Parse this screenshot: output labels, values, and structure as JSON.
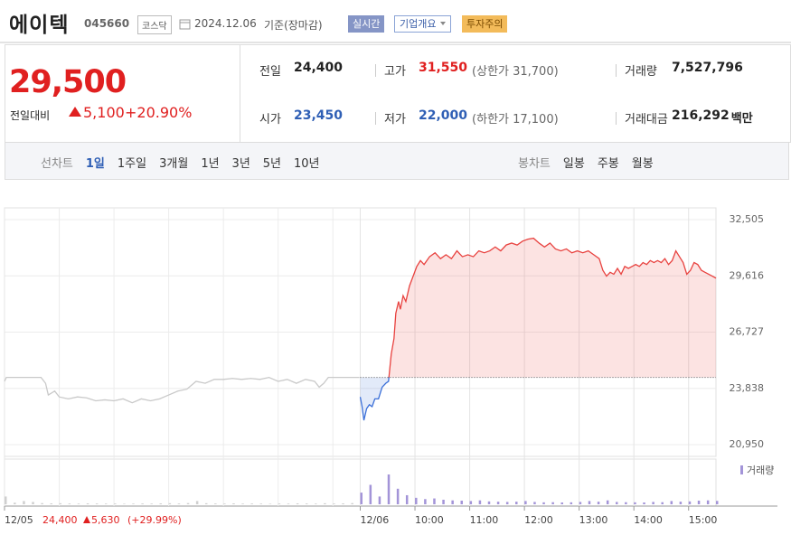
{
  "header": {
    "name": "에이텍",
    "code": "045660",
    "market": "코스닥",
    "date": "2024.12.06",
    "basis": "기준(장마감)",
    "buttons": [
      "실시간",
      "기업개요",
      "투자주의"
    ]
  },
  "price": {
    "current": "29,500",
    "change_label": "전일대비",
    "change": "5,100",
    "rate": "+20.90%"
  },
  "stats": [
    {
      "label": "전일",
      "value": "24,400"
    },
    {
      "label": "고가",
      "value": "31,550",
      "note": "(상한가 31,700)"
    },
    {
      "label": "거래량",
      "value": "7,527,796"
    },
    {
      "label": "시가",
      "value": "23,450"
    },
    {
      "label": "저가",
      "value": "22,000",
      "note": "(하한가 17,100)"
    },
    {
      "label": "거래대금",
      "value": "216,292",
      "unit": "백만"
    }
  ],
  "tabs": {
    "line_label": "선차트",
    "line": [
      "1일",
      "1주일",
      "3개월",
      "1년",
      "3년",
      "5년",
      "10년"
    ],
    "candle_label": "봉차트",
    "candle": [
      "일봉",
      "주봉",
      "월봉"
    ]
  },
  "chart_data": {
    "type": "line",
    "xlim": [
      0,
      780
    ],
    "xticks": [
      {
        "value": 0,
        "label": "12/05"
      },
      {
        "value": 390,
        "label": "12/06"
      },
      {
        "value": 450,
        "label": "10:00"
      },
      {
        "value": 510,
        "label": "11:00"
      },
      {
        "value": 570,
        "label": "12:00"
      },
      {
        "value": 630,
        "label": "13:00"
      },
      {
        "value": 690,
        "label": "14:00"
      },
      {
        "value": 750,
        "label": "15:00"
      }
    ],
    "xgrid": [
      60,
      120,
      180,
      240,
      300,
      360
    ],
    "ylim": [
      20950,
      32505
    ],
    "yticks": [
      {
        "value": 20950,
        "label": "20,950"
      },
      {
        "value": 23838,
        "label": "23,838"
      },
      {
        "value": 26727,
        "label": "26,727"
      },
      {
        "value": 29616,
        "label": "29,616"
      },
      {
        "value": 32505,
        "label": "32,505"
      }
    ],
    "grid": true,
    "reference_line": 24400,
    "series": [
      {
        "color": "#c9c9c9",
        "x": [
          0,
          2,
          10,
          20,
          30,
          40,
          45,
          48,
          55,
          60,
          70,
          80,
          90,
          100,
          110,
          120,
          130,
          140,
          150,
          160,
          170,
          180,
          190,
          200,
          205,
          210,
          220,
          230,
          240,
          250,
          260,
          270,
          280,
          290,
          300,
          310,
          320,
          330,
          340,
          345,
          350,
          355,
          365,
          375,
          389
        ],
        "values": [
          24200,
          24400,
          24400,
          24400,
          24400,
          24400,
          24100,
          23500,
          23700,
          23400,
          23300,
          23400,
          23350,
          23200,
          23250,
          23200,
          23300,
          23100,
          23300,
          23200,
          23300,
          23500,
          23700,
          23800,
          24000,
          24200,
          24100,
          24300,
          24300,
          24350,
          24300,
          24350,
          24300,
          24400,
          24200,
          24300,
          24100,
          24300,
          24200,
          23900,
          24100,
          24400,
          24400,
          24400,
          24400
        ]
      },
      {
        "color": "#e8423f",
        "color_below": "#3a6fd8",
        "x": [
          390,
          392,
          394,
          397,
          400,
          403,
          406,
          410,
          414,
          418,
          421,
          424,
          427,
          429,
          432,
          434,
          437,
          440,
          444,
          448,
          452,
          456,
          460,
          466,
          472,
          478,
          484,
          490,
          496,
          502,
          508,
          514,
          520,
          526,
          532,
          538,
          544,
          550,
          556,
          562,
          568,
          574,
          580,
          586,
          592,
          598,
          604,
          610,
          616,
          622,
          628,
          634,
          640,
          646,
          652,
          656,
          660,
          664,
          668,
          672,
          676,
          680,
          684,
          688,
          692,
          696,
          700,
          704,
          708,
          712,
          716,
          720,
          724,
          728,
          732,
          736,
          740,
          744,
          748,
          752,
          756,
          760,
          764,
          768,
          772,
          776,
          780
        ],
        "values": [
          23400,
          22900,
          22200,
          22800,
          23000,
          22900,
          23300,
          23300,
          23900,
          24100,
          24200,
          25600,
          26400,
          27700,
          28300,
          27900,
          28600,
          28300,
          29100,
          29600,
          30100,
          30400,
          30200,
          30600,
          30800,
          30500,
          30700,
          30500,
          30900,
          30600,
          30700,
          30600,
          30900,
          30800,
          30900,
          31100,
          30900,
          31200,
          31300,
          31200,
          31400,
          31500,
          31550,
          31300,
          31100,
          31300,
          31000,
          30900,
          31000,
          30800,
          30900,
          30800,
          30900,
          30700,
          30500,
          29900,
          29600,
          29800,
          29700,
          30000,
          29700,
          30100,
          30000,
          30100,
          30200,
          30100,
          30300,
          30200,
          30400,
          30300,
          30400,
          30300,
          30500,
          30200,
          30400,
          30900,
          30600,
          30300,
          29700,
          29900,
          30300,
          30200,
          29900,
          29800,
          29700,
          29600,
          29500
        ]
      }
    ],
    "volume": {
      "name": "거래량",
      "ylim": [
        0,
        300000
      ],
      "series": [
        {
          "color": "#cfcfcf",
          "x": [
            0,
            10,
            20,
            30,
            40,
            50,
            60,
            70,
            80,
            90,
            100,
            110,
            120,
            130,
            140,
            150,
            160,
            170,
            180,
            190,
            200,
            210,
            220,
            230,
            240,
            250,
            260,
            270,
            280,
            290,
            300,
            310,
            320,
            330,
            340,
            350,
            360,
            370,
            380
          ],
          "values": [
            60000,
            12000,
            25000,
            18000,
            9000,
            7000,
            8000,
            6000,
            5000,
            7000,
            6000,
            5000,
            6000,
            4000,
            5000,
            6000,
            5000,
            7000,
            8000,
            6000,
            9000,
            25000,
            8000,
            6000,
            5000,
            7000,
            5000,
            6000,
            5000,
            4000,
            6000,
            5000,
            7000,
            6000,
            5000,
            8000,
            6000,
            7000,
            9000
          ]
        },
        {
          "color": "#a394d8",
          "x": [
            390,
            400,
            410,
            420,
            430,
            440,
            450,
            460,
            470,
            480,
            490,
            500,
            510,
            520,
            530,
            540,
            550,
            560,
            570,
            580,
            590,
            600,
            610,
            620,
            630,
            640,
            650,
            660,
            670,
            680,
            690,
            700,
            710,
            720,
            730,
            740,
            750,
            760,
            770,
            780
          ],
          "values": [
            90000,
            150000,
            60000,
            230000,
            120000,
            70000,
            50000,
            40000,
            45000,
            35000,
            30000,
            28000,
            25000,
            30000,
            22000,
            20000,
            18000,
            20000,
            25000,
            18000,
            15000,
            16000,
            14000,
            15000,
            18000,
            25000,
            20000,
            30000,
            18000,
            16000,
            15000,
            14000,
            18000,
            16000,
            25000,
            20000,
            22000,
            28000,
            30000,
            26000
          ]
        }
      ]
    },
    "footer": {
      "price": "24,400",
      "change": "5,630",
      "rate": "(+29.99%)"
    }
  }
}
